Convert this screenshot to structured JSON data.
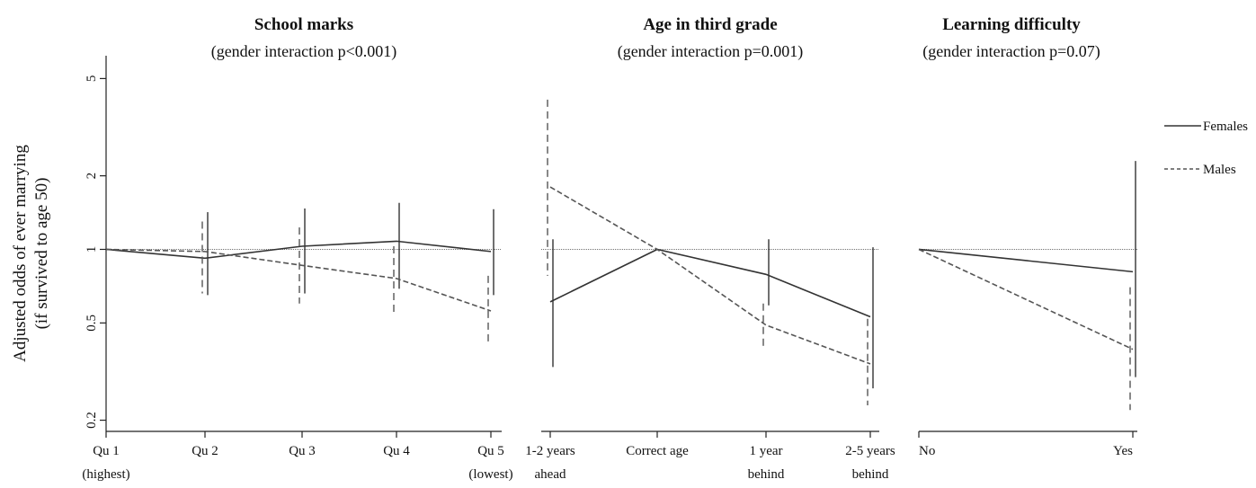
{
  "ylabel_lines": [
    "Adjusted odds of ever marrying",
    "(if survived to age 50)"
  ],
  "legend": [
    {
      "label": "Females",
      "style": "solid"
    },
    {
      "label": "Males",
      "style": "dashed"
    }
  ],
  "colors": {
    "females": "#333333",
    "males": "#555555",
    "reference": "#444444",
    "axis": "#222222"
  },
  "chart_data": [
    {
      "type": "line",
      "title": "School marks",
      "subtitle": "(gender interaction p<0.001)",
      "ylabel": "Adjusted odds of ever marrying (if survived to age 50)",
      "yscale": "log",
      "ylim": [
        0.18,
        6.2
      ],
      "yticks": [
        {
          "value": 0.2,
          "label": "0.2"
        },
        {
          "value": 0.5,
          "label": "0.5"
        },
        {
          "value": 1,
          "label": "1"
        },
        {
          "value": 2,
          "label": "2"
        },
        {
          "value": 5,
          "label": "5"
        }
      ],
      "reference_line": 1,
      "categories": [
        [
          "Qu 1",
          "(highest)"
        ],
        [
          "Qu 2",
          ""
        ],
        [
          "Qu 3",
          ""
        ],
        [
          "Qu 4",
          ""
        ],
        [
          "Qu 5",
          "(lowest)"
        ]
      ],
      "series": [
        {
          "name": "Females",
          "style": "solid",
          "values": [
            1.0,
            0.92,
            1.03,
            1.08,
            0.98
          ],
          "ci_low": [
            null,
            0.65,
            0.66,
            0.69,
            0.65
          ],
          "ci_high": [
            null,
            1.42,
            1.47,
            1.55,
            1.46
          ]
        },
        {
          "name": "Males",
          "style": "dashed",
          "values": [
            1.0,
            0.98,
            0.86,
            0.76,
            0.56
          ],
          "ci_low": [
            null,
            0.66,
            0.6,
            0.54,
            0.41
          ],
          "ci_high": [
            null,
            1.3,
            1.23,
            1.03,
            0.78
          ]
        }
      ]
    },
    {
      "type": "line",
      "title": "Age in third grade",
      "subtitle": "(gender interaction p=0.001)",
      "yscale": "log",
      "ylim": [
        0.18,
        6.2
      ],
      "reference_line": 1,
      "categories": [
        [
          "1-2 years",
          "ahead"
        ],
        [
          "Correct age",
          ""
        ],
        [
          "1 year",
          "behind"
        ],
        [
          "2-5 years",
          "behind"
        ]
      ],
      "series": [
        {
          "name": "Females",
          "style": "solid",
          "values": [
            0.61,
            1.0,
            0.79,
            0.53
          ],
          "ci_low": [
            0.33,
            null,
            0.59,
            0.27
          ],
          "ci_high": [
            1.1,
            null,
            1.1,
            1.02
          ]
        },
        {
          "name": "Males",
          "style": "dashed",
          "values": [
            1.8,
            1.0,
            0.49,
            0.34
          ],
          "ci_low": [
            0.78,
            null,
            0.4,
            0.23
          ],
          "ci_high": [
            4.1,
            null,
            0.6,
            0.52
          ]
        }
      ]
    },
    {
      "type": "line",
      "title": "Learning difficulty",
      "subtitle": "(gender interaction p=0.07)",
      "yscale": "log",
      "ylim": [
        0.18,
        6.2
      ],
      "reference_line": 1,
      "categories": [
        [
          "No",
          ""
        ],
        [
          "Yes",
          ""
        ]
      ],
      "series": [
        {
          "name": "Females",
          "style": "solid",
          "values": [
            1.0,
            0.81
          ],
          "ci_low": [
            null,
            0.3
          ],
          "ci_high": [
            null,
            2.3
          ]
        },
        {
          "name": "Males",
          "style": "dashed",
          "values": [
            1.0,
            0.39
          ],
          "ci_low": [
            null,
            0.22
          ],
          "ci_high": [
            null,
            0.7
          ]
        }
      ]
    }
  ]
}
